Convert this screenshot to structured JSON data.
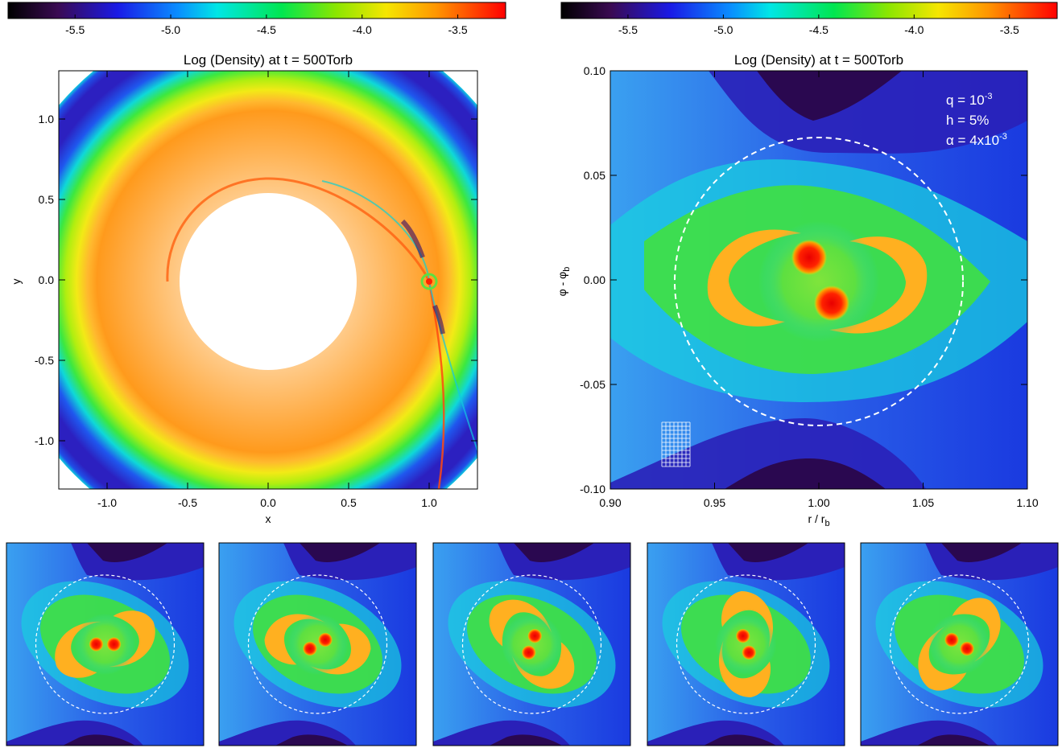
{
  "chart_data": [
    {
      "type": "heatmap",
      "title": "Log (Density) at t = 500Torb",
      "xlabel": "x",
      "ylabel": "y",
      "xlim": [
        -1.3,
        1.3
      ],
      "ylim": [
        -1.3,
        1.3
      ],
      "x_ticks": [
        "-1.0",
        "-0.5",
        "0.0",
        "0.5",
        "1.0"
      ],
      "y_ticks": [
        "-1.0",
        "-0.5",
        "0.0",
        "0.5",
        "1.0"
      ],
      "x_tick_values": [
        -1.0,
        -0.5,
        0.0,
        0.5,
        1.0
      ],
      "y_tick_values": [
        -1.0,
        -0.5,
        0.0,
        0.5,
        1.0
      ],
      "colorbar": {
        "range": [
          -5.85,
          -3.25
        ],
        "tick_labels": [
          "-5.5",
          "-5.0",
          "-4.5",
          "-4.0",
          "-3.5"
        ],
        "tick_values": [
          -5.5,
          -5.0,
          -4.5,
          -4.0,
          -3.5
        ]
      },
      "inner_hole_radius": 0.55,
      "outer_radius": 1.3,
      "planet_position": [
        1.0,
        0.0
      ]
    },
    {
      "type": "heatmap",
      "title": "Log (Density) at t = 500Torb",
      "xlabel_main": "r / r",
      "xlabel_sub": "b",
      "ylabel_main": "φ - φ",
      "ylabel_sub": "b",
      "xlim": [
        0.9,
        1.1
      ],
      "ylim": [
        -0.1,
        0.1
      ],
      "x_ticks": [
        "0.90",
        "0.95",
        "1.00",
        "1.05",
        "1.10"
      ],
      "y_ticks": [
        "-0.10",
        "-0.05",
        "0.00",
        "0.05",
        "0.10"
      ],
      "x_tick_values": [
        0.9,
        0.95,
        1.0,
        1.05,
        1.1
      ],
      "y_tick_values": [
        -0.1,
        -0.05,
        0.0,
        0.05,
        0.1
      ],
      "colorbar": {
        "range": [
          -5.85,
          -3.25
        ],
        "tick_labels": [
          "-5.5",
          "-5.0",
          "-4.5",
          "-4.0",
          "-3.5"
        ],
        "tick_values": [
          -5.5,
          -5.0,
          -4.5,
          -4.0,
          -3.5
        ]
      },
      "annotations": {
        "q_text": "q = 10",
        "q_sup": "-3",
        "h_text": "h = 5%",
        "alpha_text": "α = 4x10",
        "alpha_sup": "-3"
      },
      "hill_radius": 0.07,
      "binary_components": [
        [
          0.995,
          0.012
        ],
        [
          1.005,
          -0.012
        ]
      ]
    }
  ],
  "bottom_panels": {
    "binary_angles_deg": [
      0,
      30,
      70,
      110,
      150
    ]
  }
}
